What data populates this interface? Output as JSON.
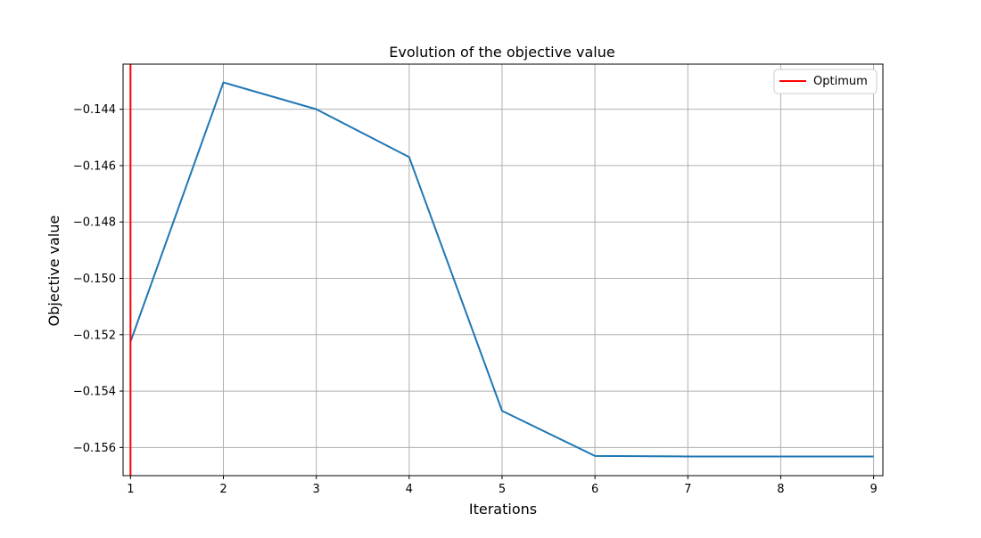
{
  "chart_data": {
    "type": "line",
    "title": "Evolution of the objective value",
    "xlabel": "Iterations",
    "ylabel": "Objective value",
    "x": [
      1,
      2,
      3,
      4,
      5,
      6,
      7,
      8,
      9
    ],
    "xlim": [
      0.92,
      9.1
    ],
    "ylim": [
      -0.157,
      -0.1424
    ],
    "xticks": [
      1,
      2,
      3,
      4,
      5,
      6,
      7,
      8,
      9
    ],
    "yticks": [
      -0.144,
      -0.146,
      -0.148,
      -0.15,
      -0.152,
      -0.154,
      -0.156
    ],
    "grid": true,
    "legend_position": "top-right",
    "series": [
      {
        "values": [
          -0.15225,
          -0.14305,
          -0.144,
          -0.1457,
          -0.1547,
          -0.1563,
          -0.15632,
          -0.15632,
          -0.15632
        ],
        "color": "#1f77b4"
      }
    ],
    "vlines": [
      {
        "x": 1,
        "name": "Optimum",
        "color": "#ff0000"
      }
    ]
  }
}
